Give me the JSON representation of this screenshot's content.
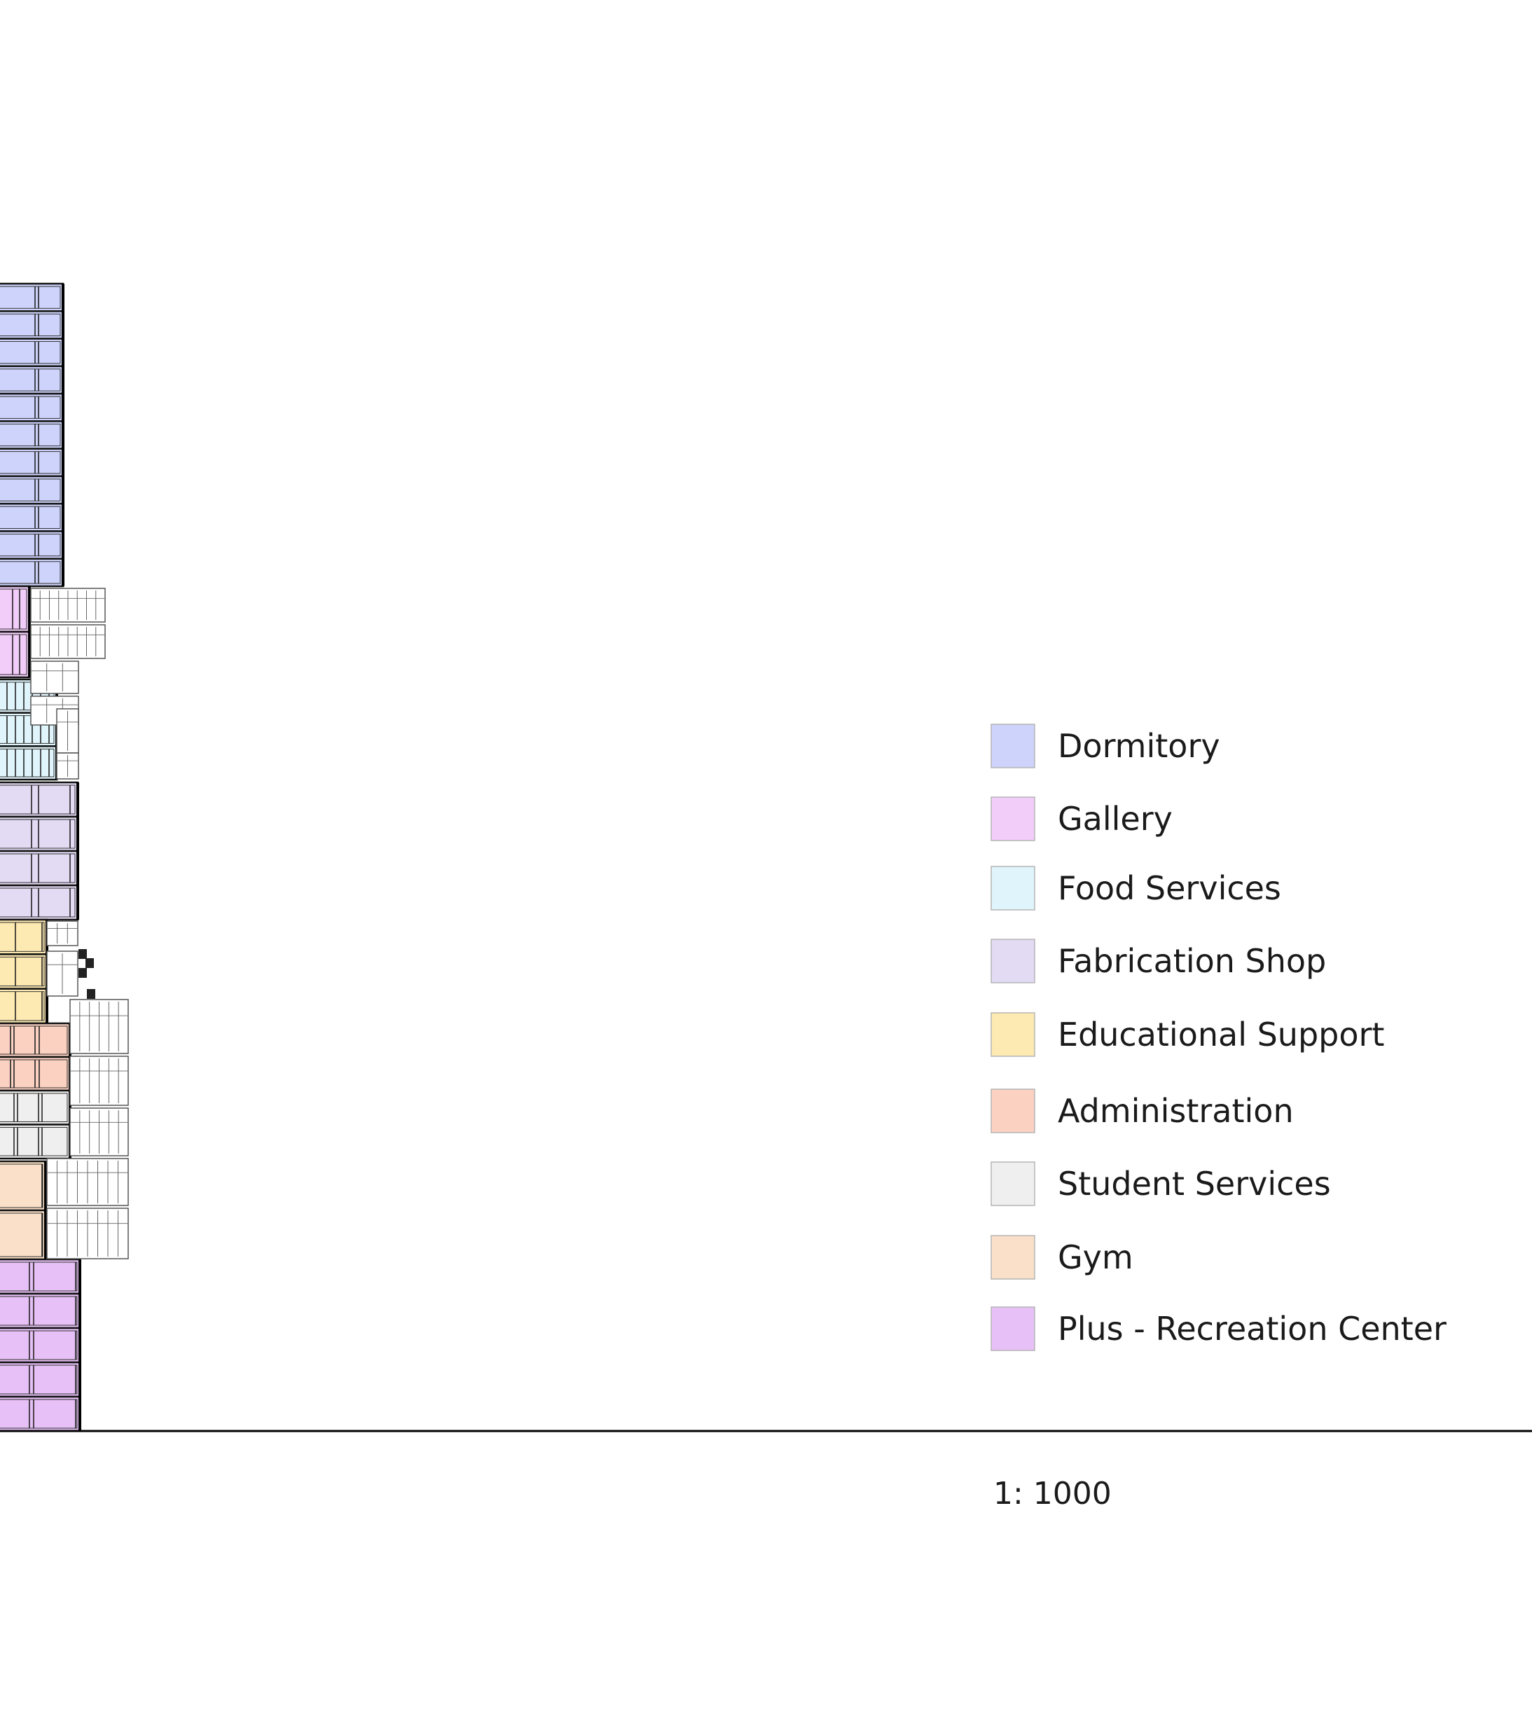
{
  "legend": {
    "items": [
      {
        "label": "Dormitory",
        "color": "#cdd3fa"
      },
      {
        "label": "Gallery",
        "color": "#f3cdfa"
      },
      {
        "label": "Food Services",
        "color": "#dff4fb"
      },
      {
        "label": "Fabrication Shop",
        "color": "#e3daf3"
      },
      {
        "label": "Educational Support",
        "color": "#fde9b2"
      },
      {
        "label": "Administration",
        "color": "#fbd1c1"
      },
      {
        "label": "Student Services",
        "color": "#efefef"
      },
      {
        "label": "Gym",
        "color": "#fae0c8"
      },
      {
        "label": "Plus - Recreation Center",
        "color": "#e6c0f6"
      }
    ]
  },
  "scale": {
    "text": "1:  1000"
  },
  "stack": [
    {
      "program": "Dormitory",
      "floors": 11
    },
    {
      "program": "Gallery",
      "floors": 2
    },
    {
      "program": "Food Services",
      "floors": 3
    },
    {
      "program": "Fabrication Shop",
      "floors": 4
    },
    {
      "program": "Educational Support",
      "floors": 3
    },
    {
      "program": "Administration",
      "floors": 2
    },
    {
      "program": "Student Services",
      "floors": 2
    },
    {
      "program": "Gym",
      "floors": 2
    },
    {
      "program": "Plus - Recreation Center",
      "floors": 5
    }
  ]
}
